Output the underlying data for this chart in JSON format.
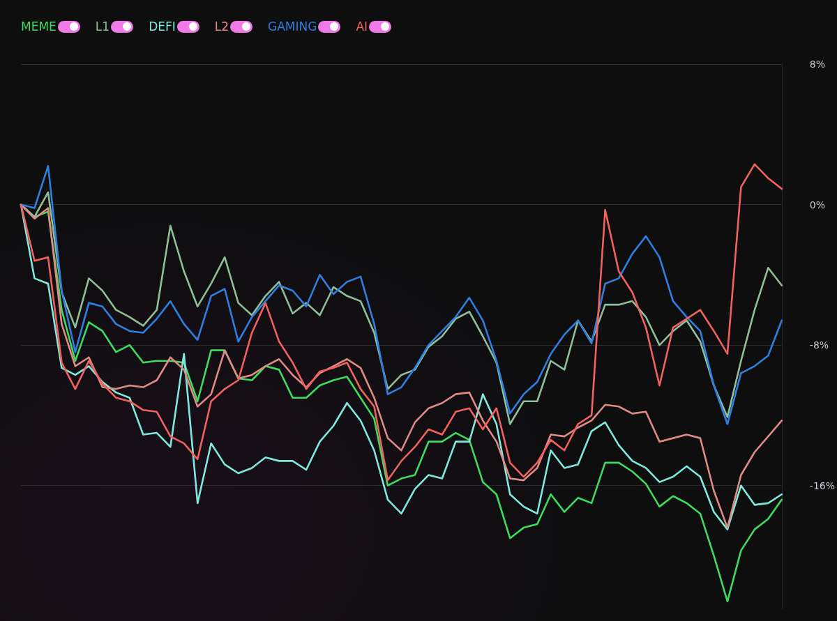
{
  "chart_data": {
    "type": "line",
    "categories": [
      null,
      null,
      null,
      null,
      null,
      null,
      null,
      null,
      null,
      null,
      null,
      null,
      null,
      null,
      null,
      null,
      null,
      null,
      null,
      null,
      null,
      null,
      null,
      null,
      null,
      null,
      null,
      null,
      null,
      null,
      null,
      null,
      null,
      null,
      null,
      null,
      null,
      null,
      null,
      null,
      null,
      null,
      null,
      null,
      null,
      null,
      null,
      null,
      null,
      null,
      null,
      null,
      null,
      null,
      null,
      null,
      null
    ],
    "series": [
      {
        "name": "MEME",
        "color": "#3ddc5f",
        "values": [
          0,
          -0.7,
          -0.4,
          -6.0,
          -8.9,
          -6.7,
          -7.2,
          -8.4,
          -8.0,
          -9.0,
          -8.9,
          -8.9,
          -9.0,
          -11.2,
          -8.3,
          -8.3,
          -9.9,
          -10.0,
          -9.2,
          -9.4,
          -11.0,
          -11.0,
          -10.3,
          -10.0,
          -9.8,
          -11.0,
          -12.2,
          -16.0,
          -15.6,
          -15.4,
          -13.5,
          -13.5,
          -13.0,
          -13.4,
          -15.8,
          -16.5,
          -19.0,
          -18.4,
          -18.2,
          -16.5,
          -17.5,
          -16.7,
          -17.0,
          -14.7,
          -14.7,
          -15.2,
          -15.9,
          -17.2,
          -16.6,
          -17.0,
          -17.6,
          -20.0,
          -22.6,
          -19.7,
          -18.5,
          -17.9,
          -16.8
        ]
      },
      {
        "name": "L1",
        "color": "#8fbf99",
        "values": [
          0,
          -0.7,
          0.7,
          -5.0,
          -7.0,
          -4.2,
          -4.9,
          -6.0,
          -6.4,
          -6.9,
          -6.0,
          -1.2,
          -3.8,
          -5.8,
          -4.5,
          -3.0,
          -5.6,
          -6.3,
          -5.2,
          -4.4,
          -6.2,
          -5.6,
          -6.3,
          -4.7,
          -5.2,
          -5.5,
          -7.3,
          -10.5,
          -9.7,
          -9.4,
          -8.1,
          -7.5,
          -6.5,
          -6.1,
          -7.5,
          -9.0,
          -12.5,
          -11.2,
          -11.2,
          -8.9,
          -9.4,
          -6.6,
          -7.8,
          -5.7,
          -5.7,
          -5.5,
          -6.4,
          -8.0,
          -7.2,
          -6.6,
          -7.8,
          -10.3,
          -12.1,
          -8.9,
          -6.0,
          -3.6,
          -4.6
        ]
      },
      {
        "name": "DEFI",
        "color": "#7fe9de",
        "values": [
          0,
          -4.2,
          -4.5,
          -9.3,
          -9.7,
          -9.2,
          -10.1,
          -10.7,
          -11.0,
          -13.1,
          -13.0,
          -13.8,
          -8.5,
          -17.0,
          -13.6,
          -14.8,
          -15.3,
          -15.0,
          -14.4,
          -14.6,
          -14.6,
          -15.1,
          -13.5,
          -12.6,
          -11.3,
          -12.3,
          -14.0,
          -16.8,
          -17.6,
          -16.2,
          -15.4,
          -15.6,
          -13.5,
          -13.5,
          -10.8,
          -12.5,
          -16.5,
          -17.2,
          -17.6,
          -14.0,
          -15.0,
          -14.8,
          -12.9,
          -12.4,
          -13.7,
          -14.6,
          -15.0,
          -15.8,
          -15.5,
          -14.9,
          -15.5,
          -17.5,
          -18.5,
          -16.0,
          -17.1,
          -17.0,
          -16.5
        ]
      },
      {
        "name": "L2",
        "color": "#e08a85",
        "values": [
          0,
          -0.8,
          -0.2,
          -6.8,
          -9.2,
          -8.7,
          -10.4,
          -10.5,
          -10.3,
          -10.4,
          -10.0,
          -8.7,
          -9.4,
          -11.5,
          -10.8,
          -8.3,
          -9.9,
          -9.7,
          -9.2,
          -8.8,
          -9.7,
          -10.4,
          -9.6,
          -9.2,
          -8.8,
          -9.3,
          -11.0,
          -13.3,
          -14.0,
          -12.4,
          -11.6,
          -11.3,
          -10.8,
          -10.7,
          -12.3,
          -13.5,
          -15.6,
          -15.7,
          -15.0,
          -13.1,
          -13.2,
          -12.7,
          -12.3,
          -11.4,
          -11.5,
          -11.9,
          -11.8,
          -13.5,
          -13.3,
          -13.1,
          -13.3,
          -16.3,
          -18.4,
          -15.4,
          -14.1,
          -13.2,
          -12.3
        ]
      },
      {
        "name": "GAMING",
        "color": "#2f7fe0",
        "values": [
          0,
          -0.2,
          2.2,
          -4.9,
          -8.4,
          -5.6,
          -5.8,
          -6.8,
          -7.2,
          -7.3,
          -6.5,
          -5.5,
          -6.8,
          -7.7,
          -5.2,
          -4.8,
          -7.8,
          -6.4,
          -5.5,
          -4.6,
          -4.9,
          -5.8,
          -4.0,
          -5.1,
          -4.4,
          -4.1,
          -6.8,
          -10.8,
          -10.4,
          -9.3,
          -8.0,
          -7.2,
          -6.4,
          -5.3,
          -6.6,
          -8.9,
          -11.9,
          -10.8,
          -10.1,
          -8.5,
          -7.4,
          -6.6,
          -7.9,
          -4.5,
          -4.2,
          -2.8,
          -1.8,
          -3.0,
          -5.5,
          -6.4,
          -7.2,
          -10.3,
          -12.5,
          -9.6,
          -9.2,
          -8.6,
          -6.6
        ]
      },
      {
        "name": "AI",
        "color": "#f0625d",
        "values": [
          0,
          -3.2,
          -3.0,
          -9.0,
          -10.5,
          -8.9,
          -10.2,
          -11.0,
          -11.2,
          -11.7,
          -11.8,
          -13.2,
          -13.6,
          -14.5,
          -11.2,
          -10.5,
          -10.0,
          -7.3,
          -5.6,
          -7.8,
          -9.0,
          -10.5,
          -9.5,
          -9.3,
          -9.0,
          -10.5,
          -11.5,
          -15.7,
          -14.6,
          -13.8,
          -12.8,
          -13.1,
          -11.8,
          -11.6,
          -12.8,
          -11.6,
          -14.7,
          -15.5,
          -14.7,
          -13.4,
          -14.0,
          -12.5,
          -12.0,
          -0.3,
          -3.8,
          -5.0,
          -7.0,
          -10.3,
          -7.0,
          -6.5,
          -6.0,
          -7.2,
          -8.5,
          1.0,
          2.3,
          1.5,
          0.9
        ]
      }
    ],
    "ylim": [
      -23,
      8
    ],
    "yticks": [
      {
        "value": 8,
        "label": "8%"
      },
      {
        "value": 0,
        "label": "0%"
      },
      {
        "value": -8,
        "label": "-8%"
      },
      {
        "value": -16,
        "label": "-16%"
      }
    ],
    "grid": "y",
    "legend": "top left",
    "marker": "none",
    "line_style": "solid"
  }
}
